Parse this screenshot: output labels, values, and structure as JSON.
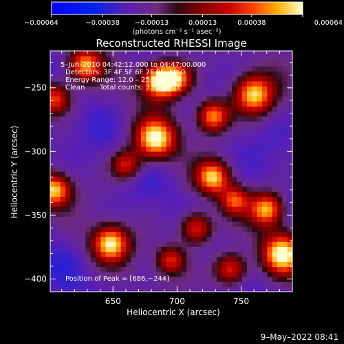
{
  "chart_data": {
    "type": "heatmap",
    "title": "Reconstructed RHESSI Image",
    "xlabel": "Heliocentric X (arcsec)",
    "ylabel": "Heliocentric Y (arcsec)",
    "xlim": [
      601,
      790
    ],
    "ylim": [
      -410,
      -221
    ],
    "x_ticks": [
      650,
      700,
      750
    ],
    "x_tick_labels": [
      "650",
      "700",
      "750"
    ],
    "y_ticks": [
      -250,
      -300,
      -350,
      -400
    ],
    "y_tick_labels": [
      "−250",
      "−300",
      "−350",
      "−400"
    ],
    "colorbar": {
      "range": [
        -0.00064,
        0.00064
      ],
      "ticks": [
        -0.00064,
        -0.00038,
        -0.00013,
        0.00013,
        0.00038,
        0.00064
      ],
      "tick_labels": [
        "−0.00064",
        "−0.00038",
        "−0.00013",
        "0.00013",
        "0.00038",
        "0.00064"
      ],
      "unit_label": "(photons cm⁻² s⁻¹ asec⁻²)",
      "placement": "top"
    },
    "annotations": {
      "time_range": "5–Jun–2010 04:42:12.000 to 04:47:00.000",
      "detectors": "Detectors: 3F 4F 5F 6F 7F 8F, Att 0",
      "energy_range": "Energy Range: 12.0 – 25.0 keV",
      "method": "Clean",
      "total_counts": "Total counts: 3.61E+03",
      "peak_position": "Position of Peak = [686,−244]"
    },
    "sources": [
      {
        "x": 686,
        "y": -244,
        "amp": 1.0,
        "w": 10
      },
      {
        "x": 760,
        "y": -255,
        "amp": 0.9,
        "w": 11
      },
      {
        "x": 628,
        "y": -232,
        "amp": 0.75,
        "w": 9
      },
      {
        "x": 700,
        "y": -242,
        "amp": 0.7,
        "w": 9
      },
      {
        "x": 728,
        "y": -272,
        "amp": 0.85,
        "w": 9
      },
      {
        "x": 683,
        "y": -290,
        "amp": 0.95,
        "w": 11
      },
      {
        "x": 604,
        "y": -258,
        "amp": 0.7,
        "w": 9
      },
      {
        "x": 604,
        "y": -330,
        "amp": 0.85,
        "w": 9
      },
      {
        "x": 660,
        "y": -310,
        "amp": 0.6,
        "w": 8
      },
      {
        "x": 728,
        "y": -320,
        "amp": 0.8,
        "w": 9
      },
      {
        "x": 770,
        "y": -345,
        "amp": 0.8,
        "w": 9
      },
      {
        "x": 745,
        "y": -338,
        "amp": 0.6,
        "w": 8
      },
      {
        "x": 715,
        "y": -360,
        "amp": 0.7,
        "w": 9
      },
      {
        "x": 648,
        "y": -372,
        "amp": 0.9,
        "w": 10
      },
      {
        "x": 782,
        "y": -380,
        "amp": 0.95,
        "w": 11
      },
      {
        "x": 742,
        "y": -392,
        "amp": 0.7,
        "w": 9
      },
      {
        "x": 695,
        "y": -385,
        "amp": 0.6,
        "w": 8
      }
    ]
  },
  "footer": {
    "timestamp": "9–May–2022 08:41"
  }
}
